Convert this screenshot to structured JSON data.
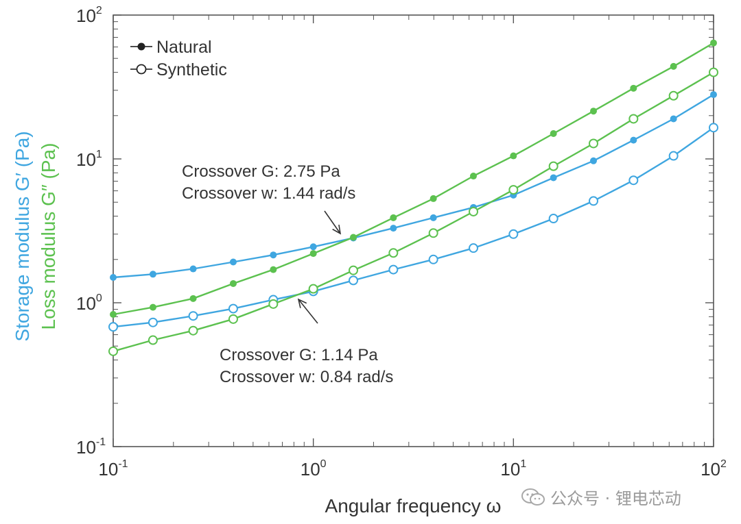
{
  "chart_data": {
    "type": "line",
    "xlabel": "Angular frequency ω",
    "ylabel_storage": "Storage modulus  G′ (Pa)",
    "ylabel_loss": "Loss modulus G″ (Pa)",
    "x_scale": "log",
    "y_scale": "log",
    "xlim": [
      0.1,
      100
    ],
    "ylim": [
      0.1,
      100
    ],
    "x_ticks": [
      {
        "base": "10",
        "exp": "-1",
        "value": 0.1
      },
      {
        "base": "10",
        "exp": "0",
        "value": 1
      },
      {
        "base": "10",
        "exp": "1",
        "value": 10
      },
      {
        "base": "10",
        "exp": "2",
        "value": 100
      }
    ],
    "y_ticks": [
      {
        "base": "10",
        "exp": "-1",
        "value": 0.1
      },
      {
        "base": "10",
        "exp": "0",
        "value": 1
      },
      {
        "base": "10",
        "exp": "1",
        "value": 10
      },
      {
        "base": "10",
        "exp": "2",
        "value": 100
      }
    ],
    "colors": {
      "storage": "#3fa6e0",
      "loss": "#5cc14f"
    },
    "legend": {
      "placement": "top-left",
      "entries": [
        {
          "label": "Natural",
          "marker": "filled"
        },
        {
          "label": "Synthetic",
          "marker": "open"
        }
      ]
    },
    "x": [
      0.1,
      0.158,
      0.251,
      0.398,
      0.631,
      1.0,
      1.585,
      2.512,
      3.981,
      6.31,
      10.0,
      15.85,
      25.12,
      39.81,
      63.1,
      100.0
    ],
    "series": [
      {
        "quantity": "storage",
        "group": "Natural",
        "marker": "filled",
        "values": [
          1.5,
          1.58,
          1.72,
          1.92,
          2.15,
          2.45,
          2.82,
          3.3,
          3.9,
          4.6,
          5.6,
          7.4,
          9.7,
          13.5,
          19.0,
          28.0
        ]
      },
      {
        "quantity": "loss",
        "group": "Natural",
        "marker": "filled",
        "values": [
          0.83,
          0.93,
          1.07,
          1.36,
          1.7,
          2.2,
          2.85,
          3.9,
          5.3,
          7.6,
          10.5,
          15.0,
          21.5,
          31.0,
          44.0,
          64.0
        ]
      },
      {
        "quantity": "storage",
        "group": "Synthetic",
        "marker": "open",
        "values": [
          0.68,
          0.73,
          0.81,
          0.91,
          1.05,
          1.2,
          1.43,
          1.7,
          2.0,
          2.4,
          3.0,
          3.85,
          5.1,
          7.1,
          10.5,
          16.5
        ]
      },
      {
        "quantity": "loss",
        "group": "Synthetic",
        "marker": "open",
        "values": [
          0.46,
          0.55,
          0.64,
          0.77,
          0.98,
          1.25,
          1.68,
          2.22,
          3.05,
          4.3,
          6.1,
          8.9,
          12.8,
          19.0,
          27.5,
          40.0
        ]
      }
    ],
    "annotations": [
      {
        "lines": [
          "Crossover G: 2.75 Pa",
          "Crossover w: 1.44 rad/s"
        ],
        "point": [
          1.44,
          2.75
        ]
      },
      {
        "lines": [
          "Crossover G: 1.14 Pa",
          "Crossover w: 0.84 rad/s"
        ],
        "point": [
          0.84,
          1.14
        ]
      }
    ]
  },
  "watermark": {
    "text": "公众号 · 锂电芯动",
    "icon": "wechat-icon"
  }
}
